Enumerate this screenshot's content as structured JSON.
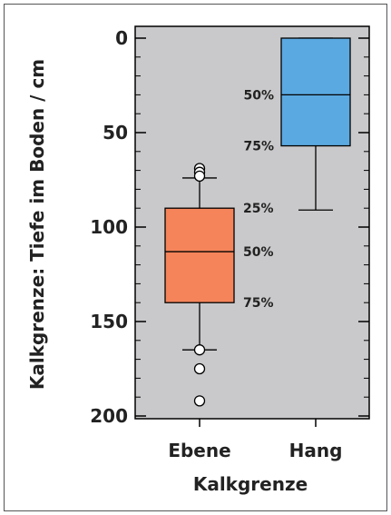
{
  "chart_data": {
    "type": "box",
    "xlabel": "Kalkgrenze",
    "ylabel": "Kalkgrenze: Tiefe im Boden / cm",
    "ylim": [
      0,
      200
    ],
    "y_inverted": true,
    "y_ticks": [
      0,
      50,
      100,
      150,
      200
    ],
    "grid": false,
    "plot_background": "#c9c9cb",
    "categories": [
      "Ebene",
      "Hang"
    ],
    "boxes": [
      {
        "category": "Ebene",
        "color": "#f5845a",
        "whisker_low": 74,
        "q1": 90,
        "median": 113,
        "q3": 140,
        "whisker_high": 165,
        "outliers": [
          69,
          71,
          73,
          165,
          175,
          192
        ],
        "annotations": [
          "25%",
          "50%",
          "75%"
        ]
      },
      {
        "category": "Hang",
        "color": "#5aa9e1",
        "whisker_low": 0,
        "q1": 0,
        "median": 30,
        "q3": 57,
        "whisker_high": 91,
        "outliers": [],
        "annotations": [
          "50%",
          "75%"
        ]
      }
    ]
  }
}
